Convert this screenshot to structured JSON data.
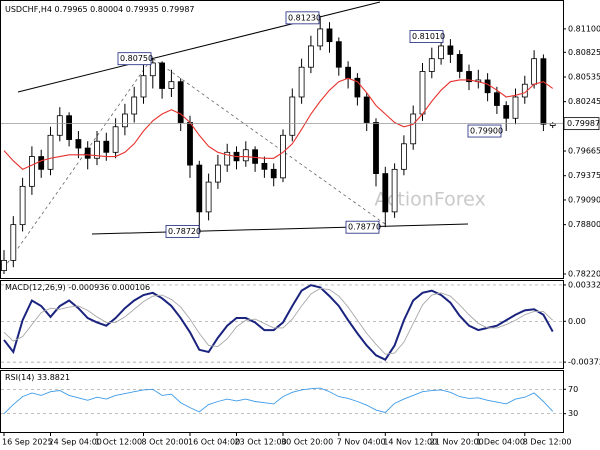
{
  "chart_data": [
    {
      "type": "candlestick",
      "title": "USDCHF,H4",
      "watermark": "ActionForex",
      "color": "#000000",
      "categories": [
        "16 Sep 2025",
        null,
        null,
        null,
        null,
        "24 Sep 04:00",
        null,
        null,
        null,
        null,
        "1 Oct 12:00",
        null,
        null,
        null,
        null,
        "8 Oct 20:00",
        null,
        null,
        null,
        null,
        "16 Oct 04:00",
        null,
        null,
        null,
        null,
        "23 Oct 12:00",
        null,
        null,
        null,
        null,
        "30 Oct 20:00",
        null,
        null,
        null,
        null,
        null,
        "7 Nov 04:00",
        null,
        null,
        null,
        null,
        "14 Nov 12:00",
        null,
        null,
        null,
        null,
        "21 Nov 20:00",
        null,
        null,
        null,
        null,
        "1 Dec 04:00",
        null,
        null,
        null,
        null,
        "8 Dec 12:00",
        null,
        null,
        null
      ],
      "open": [
        0.7826,
        0.7838,
        0.788,
        0.7925,
        0.796,
        0.7945,
        0.7985,
        0.8008,
        0.798,
        0.797,
        0.7958,
        0.7978,
        0.7965,
        0.7995,
        0.801,
        0.803,
        0.8055,
        0.807,
        0.804,
        0.8048,
        0.8,
        0.795,
        0.7895,
        0.793,
        0.795,
        0.7965,
        0.7955,
        0.7968,
        0.7952,
        0.7945,
        0.7935,
        0.7985,
        0.803,
        0.8065,
        0.809,
        0.811,
        0.8095,
        0.8065,
        0.8052,
        0.803,
        0.8,
        0.794,
        0.7895,
        0.7945,
        0.7975,
        0.801,
        0.806,
        0.8075,
        0.809,
        0.808,
        0.806,
        0.8048,
        0.805,
        0.8035,
        0.802,
        0.8005,
        0.803,
        0.8045,
        0.8075,
        0.79965
      ],
      "high": [
        0.785,
        0.789,
        0.7935,
        0.7972,
        0.7968,
        0.7995,
        0.8018,
        0.8012,
        0.799,
        0.7978,
        0.799,
        0.7988,
        0.8005,
        0.8022,
        0.8042,
        0.8068,
        0.8075,
        0.8072,
        0.8062,
        0.8052,
        0.8008,
        0.7955,
        0.794,
        0.7962,
        0.7975,
        0.7972,
        0.7978,
        0.7972,
        0.796,
        0.7952,
        0.7992,
        0.804,
        0.8075,
        0.8102,
        0.8123,
        0.8118,
        0.81,
        0.8072,
        0.8058,
        0.8035,
        0.8005,
        0.7948,
        0.7952,
        0.7985,
        0.802,
        0.807,
        0.8088,
        0.8101,
        0.8098,
        0.8085,
        0.8068,
        0.8062,
        0.8058,
        0.8042,
        0.8025,
        0.804,
        0.8055,
        0.8085,
        0.808,
        0.80004
      ],
      "low": [
        0.7822,
        0.783,
        0.7872,
        0.7915,
        0.7935,
        0.7938,
        0.7978,
        0.7972,
        0.7958,
        0.7945,
        0.795,
        0.7955,
        0.7958,
        0.7985,
        0.8,
        0.8022,
        0.804,
        0.8028,
        0.803,
        0.799,
        0.7935,
        0.7872,
        0.7885,
        0.7922,
        0.7942,
        0.7945,
        0.7948,
        0.7942,
        0.7935,
        0.7925,
        0.793,
        0.7978,
        0.8022,
        0.8058,
        0.8085,
        0.8082,
        0.8055,
        0.804,
        0.802,
        0.799,
        0.7925,
        0.7877,
        0.7888,
        0.7938,
        0.7968,
        0.8002,
        0.8052,
        0.8068,
        0.807,
        0.8052,
        0.8038,
        0.804,
        0.8025,
        0.801,
        0.799,
        0.7998,
        0.8022,
        0.804,
        0.799,
        0.79935
      ],
      "close": [
        0.7838,
        0.788,
        0.7925,
        0.796,
        0.7945,
        0.7985,
        0.8008,
        0.798,
        0.797,
        0.7958,
        0.7978,
        0.7965,
        0.7995,
        0.801,
        0.803,
        0.8055,
        0.807,
        0.804,
        0.8048,
        0.8,
        0.795,
        0.7895,
        0.793,
        0.795,
        0.7965,
        0.7955,
        0.7968,
        0.7952,
        0.7945,
        0.7935,
        0.7985,
        0.803,
        0.8065,
        0.809,
        0.811,
        0.8095,
        0.8065,
        0.8052,
        0.803,
        0.8,
        0.794,
        0.7895,
        0.7945,
        0.7975,
        0.801,
        0.806,
        0.8075,
        0.809,
        0.808,
        0.806,
        0.8048,
        0.805,
        0.8035,
        0.802,
        0.8005,
        0.803,
        0.8045,
        0.8075,
        0.7998,
        0.79987
      ],
      "ma": {
        "color": "#e8322e",
        "values": [
          0.7967,
          0.7955,
          0.7945,
          0.795,
          0.7955,
          0.7958,
          0.796,
          0.7962,
          0.7962,
          0.7962,
          0.7961,
          0.796,
          0.796,
          0.7965,
          0.7975,
          0.799,
          0.8002,
          0.801,
          0.8015,
          0.801,
          0.8,
          0.7985,
          0.7972,
          0.7965,
          0.7962,
          0.796,
          0.796,
          0.7959,
          0.7958,
          0.7958,
          0.7965,
          0.7975,
          0.7992,
          0.801,
          0.8025,
          0.8038,
          0.8048,
          0.8052,
          0.8048,
          0.8035,
          0.802,
          0.801,
          0.8,
          0.7995,
          0.7998,
          0.801,
          0.8025,
          0.8038,
          0.8048,
          0.805,
          0.805,
          0.8048,
          0.8045,
          0.8038,
          0.803,
          0.8032,
          0.8035,
          0.8045,
          0.8048,
          0.804
        ]
      },
      "annotations": [
        {
          "value": 0.8075,
          "label": "0.80750"
        },
        {
          "value": 0.8123,
          "label": "0.81230"
        },
        {
          "value": 0.8101,
          "label": "0.81010"
        },
        {
          "value": 0.7872,
          "label": "0.78720"
        },
        {
          "value": 0.7877,
          "label": "0.78770"
        },
        {
          "value": 0.799,
          "label": "0.79900"
        }
      ],
      "ylim": [
        0.78173,
        0.81428
      ],
      "yticks": [
        {
          "value": 0.811,
          "label": "0.81100"
        },
        {
          "value": 0.80825,
          "label": "0.80825"
        },
        {
          "value": 0.80535,
          "label": "0.80535"
        },
        {
          "value": 0.80245,
          "label": "0.80245"
        },
        {
          "value": 0.79665,
          "label": "0.79665"
        },
        {
          "value": 0.79375,
          "label": "0.79375"
        },
        {
          "value": 0.7909,
          "label": "0.79090"
        },
        {
          "value": 0.788,
          "label": "0.78800"
        },
        {
          "value": 0.7822,
          "label": "0.78220"
        }
      ]
    },
    {
      "type": "line",
      "title": "MACD(12,26,9)",
      "series": [
        {
          "color": "#1a237e",
          "values": [
            -0.0017,
            -0.0028,
            0.0001,
            0.0019,
            0.0014,
            0.0004,
            0.0014,
            0.0019,
            0.0012,
            0.0003,
            -0.0001,
            -0.0004,
            0.0003,
            0.0012,
            0.0019,
            0.0024,
            0.0026,
            0.0021,
            0.0014,
            0.0003,
            -0.001,
            -0.0026,
            -0.0028,
            -0.0015,
            -0.0004,
            0.0003,
            0.0003,
            -0.0001,
            -0.0008,
            -0.0008,
            -0.0001,
            0.0014,
            0.0028,
            0.0033,
            0.0031,
            0.0023,
            0.0014,
            0.0001,
            -0.0011,
            -0.0022,
            -0.0031,
            -0.0035,
            -0.0022,
            0.0001,
            0.0019,
            0.0026,
            0.0028,
            0.0024,
            0.0017,
            0.0005,
            -0.0004,
            -0.0008,
            -0.0006,
            -0.0004,
            0.0001,
            0.0006,
            0.001,
            0.0011,
            0.0006,
            -0.000936
          ]
        },
        {
          "color": "#a8a8a8",
          "values": [
            -0.001,
            -0.0018,
            -0.0014,
            -0.0003,
            0.0008,
            0.0012,
            0.0011,
            0.0013,
            0.0014,
            0.001,
            0.0004,
            -0.0001,
            -0.0001,
            0.0004,
            0.0011,
            0.0018,
            0.0023,
            0.0024,
            0.002,
            0.0013,
            0.0002,
            -0.0011,
            -0.0022,
            -0.0023,
            -0.0016,
            -0.0005,
            0.0001,
            0.0002,
            -0.0002,
            -0.0006,
            -0.0006,
            0.0002,
            0.0014,
            0.0025,
            0.003,
            0.0029,
            0.0023,
            0.0013,
            0.0001,
            -0.0011,
            -0.0021,
            -0.003,
            -0.0029,
            -0.0019,
            -0.0002,
            0.0015,
            0.0024,
            0.0026,
            0.0023,
            0.0015,
            0.0006,
            -0.0002,
            -0.0006,
            -0.0006,
            -0.0003,
            0.0001,
            0.0006,
            0.0009,
            0.0009,
            0.000106
          ]
        }
      ],
      "ylim": [
        -0.00426,
        0.00368
      ],
      "yticks": [
        0.003321,
        {
          "value": 0,
          "label": "0.00"
        },
        -0.003723
      ]
    },
    {
      "type": "line",
      "title": "RSI(14)",
      "series": [
        {
          "color": "#3d9be9",
          "values": [
            30,
            45,
            58,
            64,
            60,
            66,
            68,
            60,
            56,
            52,
            57,
            54,
            60,
            63,
            66,
            69,
            70,
            60,
            62,
            48,
            40,
            33,
            45,
            50,
            54,
            51,
            54,
            50,
            48,
            46,
            58,
            65,
            69,
            71,
            72,
            66,
            58,
            55,
            50,
            44,
            36,
            32,
            47,
            54,
            60,
            66,
            68,
            69,
            65,
            58,
            55,
            56,
            52,
            49,
            46,
            54,
            57,
            64,
            50,
            33.8821
          ]
        }
      ],
      "ylim": [
        0,
        100
      ],
      "yticks": [
        30,
        70
      ]
    }
  ]
}
